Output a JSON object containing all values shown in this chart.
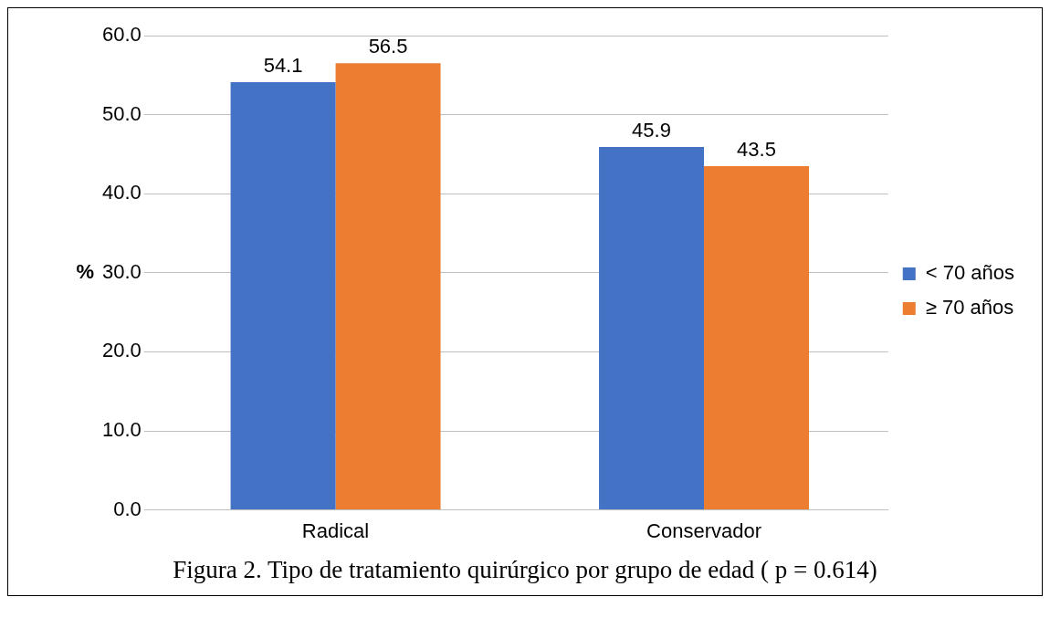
{
  "chart_data": {
    "type": "bar",
    "categories": [
      "Radical",
      "Conservador"
    ],
    "series": [
      {
        "name": "< 70 años",
        "color": "#4472c4",
        "values": [
          54.1,
          45.9
        ]
      },
      {
        "name": "≥ 70 años",
        "color": "#ed7d31",
        "values": [
          56.5,
          43.5
        ]
      }
    ],
    "ylabel": "%",
    "ylim": [
      0,
      60
    ],
    "yticks": [
      {
        "value": 0,
        "label": "0.0"
      },
      {
        "value": 10,
        "label": "10.0"
      },
      {
        "value": 20,
        "label": "20.0"
      },
      {
        "value": 30,
        "label": "30.0"
      },
      {
        "value": 40,
        "label": "40.0"
      },
      {
        "value": 50,
        "label": "50.0"
      },
      {
        "value": 60,
        "label": "60.0"
      }
    ],
    "grid": "y",
    "legend": "right",
    "data_labels": true,
    "annotations": [
      "Figura 2. Tipo de tratamiento quirúrgico por grupo de edad ( p = 0.614)"
    ]
  }
}
